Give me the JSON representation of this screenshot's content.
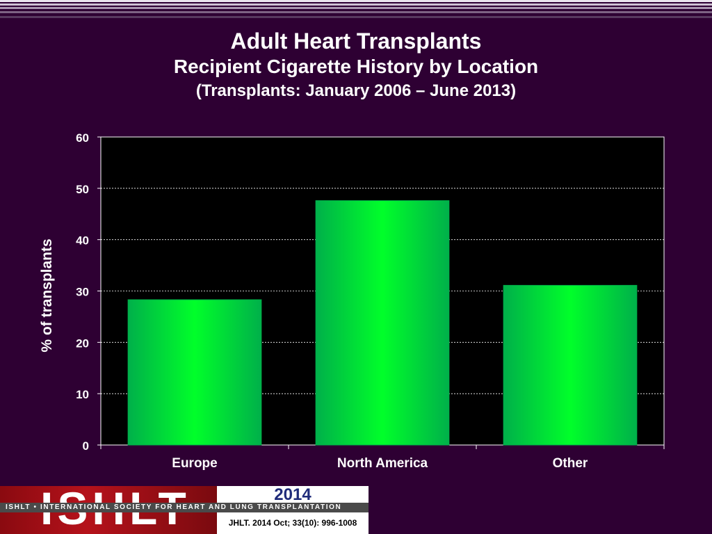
{
  "header": {
    "title": "Adult Heart Transplants",
    "subtitle": "Recipient Cigarette History by Location",
    "subtitle2": "(Transplants: January 2006 – June 2013)"
  },
  "chart_data": {
    "type": "bar",
    "categories": [
      "Europe",
      "North America",
      "Other"
    ],
    "values": [
      28.3,
      47.6,
      31.1
    ],
    "xlabel": "",
    "ylabel": "% of transplants",
    "ylim": [
      0,
      60
    ],
    "yticks": [
      0,
      10,
      20,
      30,
      40,
      50,
      60
    ],
    "grid": true,
    "bar_color": "#00ff2a",
    "bar_edge_color": "#00b04a",
    "plot_background": "#000000"
  },
  "footer": {
    "logo_word": "ISHLT",
    "logo_line": "ISHLT • INTERNATIONAL SOCIETY FOR HEART AND LUNG TRANSPLANTATION",
    "year": "2014",
    "citation": "JHLT. 2014 Oct; 33(10): 996-1008",
    "logo_color": "#b5121b",
    "year_color": "#1f2b7a"
  },
  "colors": {
    "background": "#2e0033",
    "text": "#ffffff"
  }
}
